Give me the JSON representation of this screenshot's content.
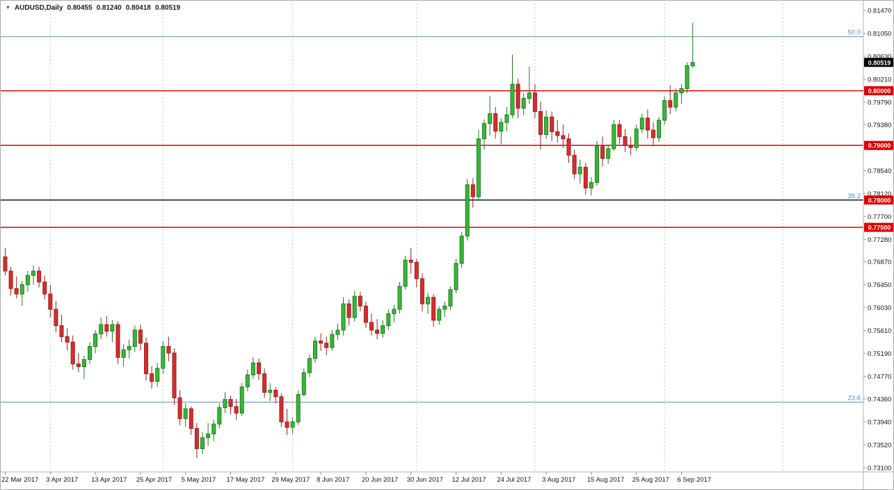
{
  "legend": {
    "symbol": "AUDUSD,Daily",
    "open": "0.80455",
    "high": "0.81240",
    "low": "0.80418",
    "close": "0.80519"
  },
  "theme": {
    "background": "#ffffff",
    "up_color": "#38b838",
    "up_border": "#1d7a1d",
    "down_color": "#d62e2e",
    "down_border": "#9a1c1c",
    "grid_color": "#c9c9c9",
    "axis_text_color": "#141414",
    "level_line_red": "#e00000",
    "level_line_dark": "#474752",
    "fib_color": "#5b8bad",
    "level_badge_bg": "#e00000",
    "current_price_badge_bg": "#000000",
    "badge_text_color": "#ffffff"
  },
  "chart_data": {
    "type": "candlestick",
    "title": "AUDUSD,Daily",
    "symbol": "AUDUSD",
    "timeframe": "Daily",
    "current_price": "0.80519",
    "y_axis": {
      "top_price": 0.8147,
      "bottom_price": 0.731,
      "labels": [
        "0.81470",
        "0.81050",
        "0.80630",
        "0.80210",
        "0.79790",
        "0.79380",
        "0.78960",
        "0.78540",
        "0.78120",
        "0.77700",
        "0.77280",
        "0.76870",
        "0.76450",
        "0.76030",
        "0.75610",
        "0.75190",
        "0.74770",
        "0.74360",
        "0.73940",
        "0.73520",
        "0.73100"
      ]
    },
    "x_axis": {
      "labels": [
        {
          "text": "22 Mar 2017",
          "index": 0
        },
        {
          "text": "3 Apr 2017",
          "index": 8
        },
        {
          "text": "13 Apr 2017",
          "index": 16
        },
        {
          "text": "25 Apr 2017",
          "index": 24
        },
        {
          "text": "5 May 2017",
          "index": 32
        },
        {
          "text": "17 May 2017",
          "index": 40
        },
        {
          "text": "29 May 2017",
          "index": 48
        },
        {
          "text": "8 Jun 2017",
          "index": 56
        },
        {
          "text": "20 Jun 2017",
          "index": 64
        },
        {
          "text": "30 Jun 2017",
          "index": 72
        },
        {
          "text": "12 Jul 2017",
          "index": 80
        },
        {
          "text": "24 Jul 2017",
          "index": 88
        },
        {
          "text": "3 Aug 2017",
          "index": 96
        },
        {
          "text": "15 Aug 2017",
          "index": 104
        },
        {
          "text": "25 Aug 2017",
          "index": 112
        },
        {
          "text": "6 Sep 2017",
          "index": 120
        }
      ]
    },
    "v_gridline_indices": [
      8,
      28,
      51,
      73,
      94,
      117,
      138
    ],
    "h_levels": [
      {
        "price": 0.8,
        "label": "0.80000",
        "style": "red",
        "width": 1.5
      },
      {
        "price": 0.79,
        "label": "0.79000",
        "style": "red",
        "width": 1.5
      },
      {
        "price": 0.78,
        "label": "0.78000",
        "style": "dark",
        "width": 2
      },
      {
        "price": 0.775,
        "label": "0.77500",
        "style": "red",
        "width": 1.5
      }
    ],
    "fib_levels": [
      {
        "pct": "50.0",
        "price": 0.8099
      },
      {
        "pct": "38.2",
        "price": 0.78
      },
      {
        "pct": "23.6",
        "price": 0.743
      }
    ],
    "candles": [
      [
        "22 Mar",
        0.7696,
        0.7712,
        0.7662,
        0.767
      ],
      [
        "23 Mar",
        0.767,
        0.7678,
        0.7625,
        0.7638
      ],
      [
        "24 Mar",
        0.7638,
        0.766,
        0.762,
        0.7628
      ],
      [
        "27 Mar",
        0.7628,
        0.7652,
        0.7606,
        0.7645
      ],
      [
        "28 Mar",
        0.7645,
        0.767,
        0.7632,
        0.7662
      ],
      [
        "29 Mar",
        0.7662,
        0.768,
        0.7645,
        0.767
      ],
      [
        "30 Mar",
        0.767,
        0.7678,
        0.764,
        0.765
      ],
      [
        "31 Mar",
        0.765,
        0.7662,
        0.7618,
        0.7628
      ],
      [
        "3 Apr",
        0.7628,
        0.7645,
        0.7585,
        0.76
      ],
      [
        "4 Apr",
        0.76,
        0.7615,
        0.7558,
        0.757
      ],
      [
        "5 Apr",
        0.757,
        0.759,
        0.754,
        0.755
      ],
      [
        "6 Apr",
        0.755,
        0.7565,
        0.7525,
        0.754
      ],
      [
        "7 Apr",
        0.754,
        0.7552,
        0.749,
        0.75
      ],
      [
        "10 Apr",
        0.75,
        0.752,
        0.7485,
        0.7495
      ],
      [
        "11 Apr",
        0.7495,
        0.7515,
        0.7472,
        0.7508
      ],
      [
        "12 Apr",
        0.7508,
        0.754,
        0.75,
        0.7532
      ],
      [
        "13 Apr",
        0.7532,
        0.7562,
        0.752,
        0.7555
      ],
      [
        "14 Apr",
        0.7555,
        0.7585,
        0.7545,
        0.7572
      ],
      [
        "17 Apr",
        0.7572,
        0.7588,
        0.755,
        0.756
      ],
      [
        "18 Apr",
        0.756,
        0.758,
        0.754,
        0.7572
      ],
      [
        "19 Apr",
        0.7572,
        0.7578,
        0.75,
        0.7512
      ],
      [
        "20 Apr",
        0.7512,
        0.7536,
        0.7495,
        0.7526
      ],
      [
        "21 Apr",
        0.7526,
        0.7545,
        0.751,
        0.7532
      ],
      [
        "24 Apr",
        0.7532,
        0.757,
        0.7522,
        0.7562
      ],
      [
        "25 Apr",
        0.7562,
        0.7572,
        0.7525,
        0.7538
      ],
      [
        "26 Apr",
        0.7538,
        0.7548,
        0.747,
        0.7482
      ],
      [
        "27 Apr",
        0.7482,
        0.7496,
        0.7455,
        0.7468
      ],
      [
        "28 Apr",
        0.7468,
        0.7502,
        0.7458,
        0.7492
      ],
      [
        "1 May",
        0.7492,
        0.7542,
        0.7482,
        0.7532
      ],
      [
        "2 May",
        0.7532,
        0.755,
        0.7505,
        0.752
      ],
      [
        "3 May",
        0.752,
        0.7528,
        0.7425,
        0.7438
      ],
      [
        "4 May",
        0.7438,
        0.7452,
        0.7388,
        0.74
      ],
      [
        "5 May",
        0.74,
        0.7428,
        0.7385,
        0.7418
      ],
      [
        "8 May",
        0.7418,
        0.7422,
        0.737,
        0.7382
      ],
      [
        "9 May",
        0.7382,
        0.7392,
        0.7328,
        0.7345
      ],
      [
        "10 May",
        0.7345,
        0.7375,
        0.7335,
        0.7365
      ],
      [
        "11 May",
        0.7365,
        0.7392,
        0.735,
        0.7372
      ],
      [
        "12 May",
        0.7372,
        0.7398,
        0.7358,
        0.739
      ],
      [
        "15 May",
        0.739,
        0.7428,
        0.7382,
        0.742
      ],
      [
        "16 May",
        0.742,
        0.7448,
        0.741,
        0.7435
      ],
      [
        "17 May",
        0.7435,
        0.7442,
        0.7408,
        0.7422
      ],
      [
        "18 May",
        0.7422,
        0.7436,
        0.7398,
        0.741
      ],
      [
        "19 May",
        0.741,
        0.7465,
        0.7405,
        0.7458
      ],
      [
        "22 May",
        0.7458,
        0.749,
        0.745,
        0.748
      ],
      [
        "23 May",
        0.748,
        0.7512,
        0.7472,
        0.7502
      ],
      [
        "24 May",
        0.7502,
        0.751,
        0.747,
        0.7482
      ],
      [
        "25 May",
        0.7482,
        0.7492,
        0.7438,
        0.7448
      ],
      [
        "26 May",
        0.7448,
        0.7465,
        0.7432,
        0.7452
      ],
      [
        "29 May",
        0.7452,
        0.7458,
        0.7428,
        0.744
      ],
      [
        "30 May",
        0.744,
        0.7446,
        0.7385,
        0.7394
      ],
      [
        "31 May",
        0.7394,
        0.7418,
        0.737,
        0.7384
      ],
      [
        "1 Jun",
        0.7384,
        0.7402,
        0.7372,
        0.7394
      ],
      [
        "2 Jun",
        0.7394,
        0.7452,
        0.7388,
        0.7444
      ],
      [
        "5 Jun",
        0.7444,
        0.7492,
        0.744,
        0.7484
      ],
      [
        "6 Jun",
        0.7484,
        0.7518,
        0.7476,
        0.751
      ],
      [
        "7 Jun",
        0.751,
        0.755,
        0.7502,
        0.7542
      ],
      [
        "8 Jun",
        0.7542,
        0.7556,
        0.7524,
        0.7538
      ],
      [
        "9 Jun",
        0.7538,
        0.755,
        0.7516,
        0.753
      ],
      [
        "12 Jun",
        0.753,
        0.7562,
        0.7524,
        0.7554
      ],
      [
        "13 Jun",
        0.7554,
        0.7574,
        0.7544,
        0.7562
      ],
      [
        "14 Jun",
        0.7562,
        0.7622,
        0.7552,
        0.761
      ],
      [
        "15 Jun",
        0.761,
        0.7618,
        0.757,
        0.7585
      ],
      [
        "16 Jun",
        0.7585,
        0.7634,
        0.7578,
        0.7624
      ],
      [
        "19 Jun",
        0.7624,
        0.7632,
        0.7596,
        0.7606
      ],
      [
        "20 Jun",
        0.7606,
        0.7614,
        0.7566,
        0.7576
      ],
      [
        "21 Jun",
        0.7576,
        0.7592,
        0.7552,
        0.7562
      ],
      [
        "22 Jun",
        0.7562,
        0.7582,
        0.7545,
        0.7556
      ],
      [
        "23 Jun",
        0.7556,
        0.758,
        0.7548,
        0.757
      ],
      [
        "26 Jun",
        0.757,
        0.76,
        0.7562,
        0.7592
      ],
      [
        "27 Jun",
        0.7592,
        0.7608,
        0.7576,
        0.76
      ],
      [
        "28 Jun",
        0.76,
        0.765,
        0.7592,
        0.7642
      ],
      [
        "29 Jun",
        0.7642,
        0.7698,
        0.7636,
        0.769
      ],
      [
        "30 Jun",
        0.769,
        0.7712,
        0.7665,
        0.7686
      ],
      [
        "3 Jul",
        0.7686,
        0.7692,
        0.764,
        0.7656
      ],
      [
        "4 Jul",
        0.7656,
        0.7666,
        0.7596,
        0.761
      ],
      [
        "5 Jul",
        0.761,
        0.763,
        0.7592,
        0.7622
      ],
      [
        "6 Jul",
        0.7622,
        0.7628,
        0.7568,
        0.758
      ],
      [
        "7 Jul",
        0.758,
        0.7606,
        0.7572,
        0.76
      ],
      [
        "10 Jul",
        0.76,
        0.7614,
        0.7586,
        0.7606
      ],
      [
        "11 Jul",
        0.7606,
        0.7642,
        0.7598,
        0.7636
      ],
      [
        "12 Jul",
        0.7636,
        0.7692,
        0.763,
        0.7684
      ],
      [
        "13 Jul",
        0.7684,
        0.7742,
        0.7676,
        0.7734
      ],
      [
        "14 Jul",
        0.7734,
        0.7838,
        0.7726,
        0.7828
      ],
      [
        "17 Jul",
        0.7828,
        0.784,
        0.7786,
        0.7806
      ],
      [
        "18 Jul",
        0.7806,
        0.7928,
        0.78,
        0.7912
      ],
      [
        "19 Jul",
        0.7912,
        0.7948,
        0.7892,
        0.794
      ],
      [
        "20 Jul",
        0.794,
        0.799,
        0.7918,
        0.7958
      ],
      [
        "21 Jul",
        0.7958,
        0.797,
        0.7912,
        0.7926
      ],
      [
        "24 Jul",
        0.7926,
        0.795,
        0.7902,
        0.7942
      ],
      [
        "25 Jul",
        0.7942,
        0.797,
        0.7926,
        0.7956
      ],
      [
        "26 Jul",
        0.7956,
        0.8066,
        0.795,
        0.8012
      ],
      [
        "27 Jul",
        0.8012,
        0.8022,
        0.795,
        0.7968
      ],
      [
        "28 Jul",
        0.7968,
        0.7996,
        0.7955,
        0.7986
      ],
      [
        "31 Jul",
        0.7986,
        0.8044,
        0.7976,
        0.7996
      ],
      [
        "1 Aug",
        0.7996,
        0.8012,
        0.795,
        0.7962
      ],
      [
        "2 Aug",
        0.7962,
        0.798,
        0.7892,
        0.792
      ],
      [
        "3 Aug",
        0.792,
        0.7964,
        0.7912,
        0.7952
      ],
      [
        "4 Aug",
        0.7952,
        0.7962,
        0.7908,
        0.7925
      ],
      [
        "7 Aug",
        0.7925,
        0.7946,
        0.7905,
        0.7918
      ],
      [
        "8 Aug",
        0.7918,
        0.7938,
        0.7895,
        0.7912
      ],
      [
        "9 Aug",
        0.7912,
        0.7922,
        0.7868,
        0.7882
      ],
      [
        "10 Aug",
        0.7882,
        0.7892,
        0.7838,
        0.7848
      ],
      [
        "11 Aug",
        0.7848,
        0.7874,
        0.783,
        0.786
      ],
      [
        "14 Aug",
        0.786,
        0.7868,
        0.781,
        0.7822
      ],
      [
        "15 Aug",
        0.7822,
        0.7842,
        0.7808,
        0.7832
      ],
      [
        "16 Aug",
        0.7832,
        0.7908,
        0.7826,
        0.7898
      ],
      [
        "17 Aug",
        0.7898,
        0.7916,
        0.7862,
        0.7876
      ],
      [
        "18 Aug",
        0.7876,
        0.7902,
        0.7866,
        0.7894
      ],
      [
        "21 Aug",
        0.7894,
        0.7946,
        0.789,
        0.7938
      ],
      [
        "22 Aug",
        0.7938,
        0.7946,
        0.7902,
        0.7916
      ],
      [
        "23 Aug",
        0.7916,
        0.793,
        0.7888,
        0.79
      ],
      [
        "24 Aug",
        0.79,
        0.7916,
        0.7882,
        0.7896
      ],
      [
        "25 Aug",
        0.7896,
        0.7938,
        0.789,
        0.793
      ],
      [
        "28 Aug",
        0.793,
        0.7958,
        0.7922,
        0.795
      ],
      [
        "29 Aug",
        0.795,
        0.7966,
        0.7912,
        0.7928
      ],
      [
        "30 Aug",
        0.7928,
        0.7942,
        0.7898,
        0.7914
      ],
      [
        "31 Aug",
        0.7914,
        0.7952,
        0.7906,
        0.7946
      ],
      [
        "1 Sep",
        0.7946,
        0.799,
        0.7938,
        0.7982
      ],
      [
        "4 Sep",
        0.7982,
        0.801,
        0.7958,
        0.797
      ],
      [
        "5 Sep",
        0.797,
        0.8004,
        0.7962,
        0.7996
      ],
      [
        "6 Sep",
        0.7996,
        0.8012,
        0.7976,
        0.8004
      ],
      [
        "7 Sep",
        0.8004,
        0.8052,
        0.7996,
        0.8046
      ],
      [
        "8 Sep",
        0.80455,
        0.8124,
        0.80418,
        0.80519
      ]
    ]
  }
}
